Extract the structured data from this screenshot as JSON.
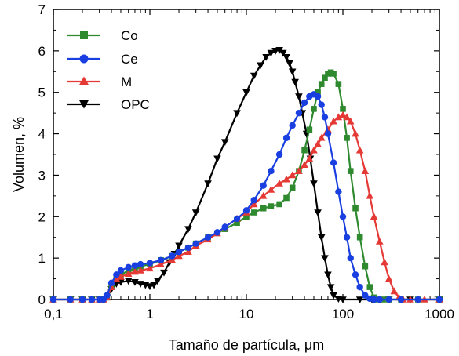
{
  "chart_data": {
    "type": "line",
    "title": "",
    "xlabel": "Tamaño de partícula, μm",
    "ylabel": "Volumen, %",
    "x_scale": "log",
    "xlim": [
      0.1,
      1000
    ],
    "ylim": [
      0,
      7
    ],
    "x_ticks": [
      "0,1",
      "1",
      "10",
      "100",
      "1000"
    ],
    "y_ticks": [
      "0",
      "1",
      "2",
      "3",
      "4",
      "5",
      "6",
      "7"
    ],
    "grid": false,
    "legend_position": "top-left",
    "series": [
      {
        "name": "Co",
        "color": "#2f8a2f",
        "marker": "square",
        "x": [
          0.1,
          0.15,
          0.2,
          0.25,
          0.3,
          0.33,
          0.36,
          0.4,
          0.45,
          0.5,
          0.6,
          0.7,
          0.8,
          1.0,
          1.3,
          1.7,
          2.0,
          2.5,
          3,
          4,
          5,
          6,
          8,
          10,
          12,
          15,
          18,
          22,
          26,
          30,
          35,
          40,
          45,
          50,
          55,
          60,
          65,
          70,
          75,
          80,
          90,
          100,
          110,
          120,
          135,
          150,
          170,
          190,
          210,
          230,
          260,
          300,
          400,
          600,
          1000
        ],
        "y": [
          0,
          0,
          0,
          0,
          0,
          0,
          0.05,
          0.3,
          0.5,
          0.6,
          0.7,
          0.75,
          0.8,
          0.85,
          0.95,
          1.05,
          1.15,
          1.25,
          1.35,
          1.5,
          1.6,
          1.7,
          1.85,
          2.0,
          2.1,
          2.2,
          2.25,
          2.3,
          2.45,
          2.7,
          3.1,
          3.6,
          4.1,
          4.6,
          5.0,
          5.2,
          5.35,
          5.45,
          5.48,
          5.45,
          5.2,
          4.6,
          3.9,
          3.1,
          2.2,
          1.5,
          0.8,
          0.3,
          0.05,
          0,
          0,
          0,
          0,
          0,
          0
        ]
      },
      {
        "name": "Ce",
        "color": "#1a3fe0",
        "marker": "circle",
        "x": [
          0.1,
          0.15,
          0.2,
          0.25,
          0.3,
          0.33,
          0.36,
          0.4,
          0.45,
          0.5,
          0.6,
          0.7,
          0.8,
          1.0,
          1.3,
          1.7,
          2.0,
          2.5,
          3,
          4,
          5,
          6,
          8,
          10,
          12,
          15,
          18,
          22,
          26,
          30,
          35,
          40,
          45,
          50,
          55,
          60,
          65,
          70,
          80,
          90,
          100,
          110,
          120,
          135,
          150,
          170,
          190,
          210,
          240,
          300,
          400,
          600,
          1000
        ],
        "y": [
          0,
          0,
          0,
          0,
          0,
          0,
          0.1,
          0.4,
          0.6,
          0.7,
          0.78,
          0.82,
          0.85,
          0.88,
          0.95,
          1.05,
          1.15,
          1.25,
          1.35,
          1.5,
          1.62,
          1.75,
          1.95,
          2.15,
          2.4,
          2.75,
          3.1,
          3.5,
          3.9,
          4.2,
          4.5,
          4.75,
          4.9,
          4.95,
          4.9,
          4.7,
          4.4,
          4.0,
          3.3,
          2.6,
          2.0,
          1.5,
          1.0,
          0.6,
          0.3,
          0.1,
          0.02,
          0,
          0,
          0,
          0,
          0,
          0
        ]
      },
      {
        "name": "M",
        "color": "#e53935",
        "marker": "triangle-up",
        "x": [
          0.1,
          0.15,
          0.2,
          0.25,
          0.3,
          0.33,
          0.36,
          0.4,
          0.45,
          0.5,
          0.6,
          0.7,
          0.8,
          1.0,
          1.3,
          1.7,
          2.0,
          2.5,
          3,
          4,
          5,
          6,
          8,
          10,
          12,
          15,
          18,
          22,
          26,
          30,
          35,
          40,
          45,
          50,
          55,
          60,
          70,
          80,
          90,
          100,
          110,
          120,
          135,
          150,
          170,
          190,
          210,
          240,
          270,
          300,
          340,
          380,
          420,
          500,
          700,
          1000
        ],
        "y": [
          0,
          0,
          0,
          0,
          0,
          0,
          0.05,
          0.3,
          0.5,
          0.55,
          0.62,
          0.67,
          0.7,
          0.75,
          0.85,
          0.95,
          1.05,
          1.15,
          1.3,
          1.45,
          1.6,
          1.75,
          1.95,
          2.1,
          2.3,
          2.5,
          2.65,
          2.8,
          2.9,
          3.0,
          3.1,
          3.25,
          3.4,
          3.6,
          3.75,
          3.9,
          4.1,
          4.3,
          4.4,
          4.45,
          4.4,
          4.3,
          4.0,
          3.6,
          3.1,
          2.5,
          2.0,
          1.4,
          0.9,
          0.5,
          0.2,
          0.05,
          0,
          0,
          0,
          0
        ]
      },
      {
        "name": "OPC",
        "color": "#000000",
        "marker": "triangle-down",
        "x": [
          0.1,
          0.15,
          0.2,
          0.25,
          0.3,
          0.33,
          0.36,
          0.4,
          0.45,
          0.5,
          0.6,
          0.7,
          0.8,
          0.9,
          1.0,
          1.1,
          1.2,
          1.4,
          1.6,
          1.8,
          2.0,
          2.5,
          3,
          4,
          5,
          6,
          8,
          10,
          12,
          14,
          16,
          18,
          20,
          22,
          24,
          26,
          28,
          30,
          32,
          35,
          38,
          42,
          46,
          50,
          55,
          60,
          65,
          70,
          75,
          80,
          90,
          100,
          150,
          200,
          300,
          500,
          1000
        ],
        "y": [
          0,
          0,
          0,
          0,
          0,
          0,
          0.05,
          0.25,
          0.38,
          0.42,
          0.45,
          0.42,
          0.38,
          0.35,
          0.32,
          0.35,
          0.45,
          0.65,
          0.9,
          1.1,
          1.3,
          1.7,
          2.1,
          2.8,
          3.4,
          3.8,
          4.5,
          5.0,
          5.4,
          5.65,
          5.85,
          5.95,
          6.0,
          6.02,
          5.95,
          5.85,
          5.7,
          5.5,
          5.25,
          4.9,
          4.5,
          4.0,
          3.4,
          2.8,
          2.1,
          1.5,
          1.0,
          0.6,
          0.3,
          0.1,
          0.02,
          0,
          0,
          0,
          0,
          0,
          0
        ]
      }
    ]
  }
}
